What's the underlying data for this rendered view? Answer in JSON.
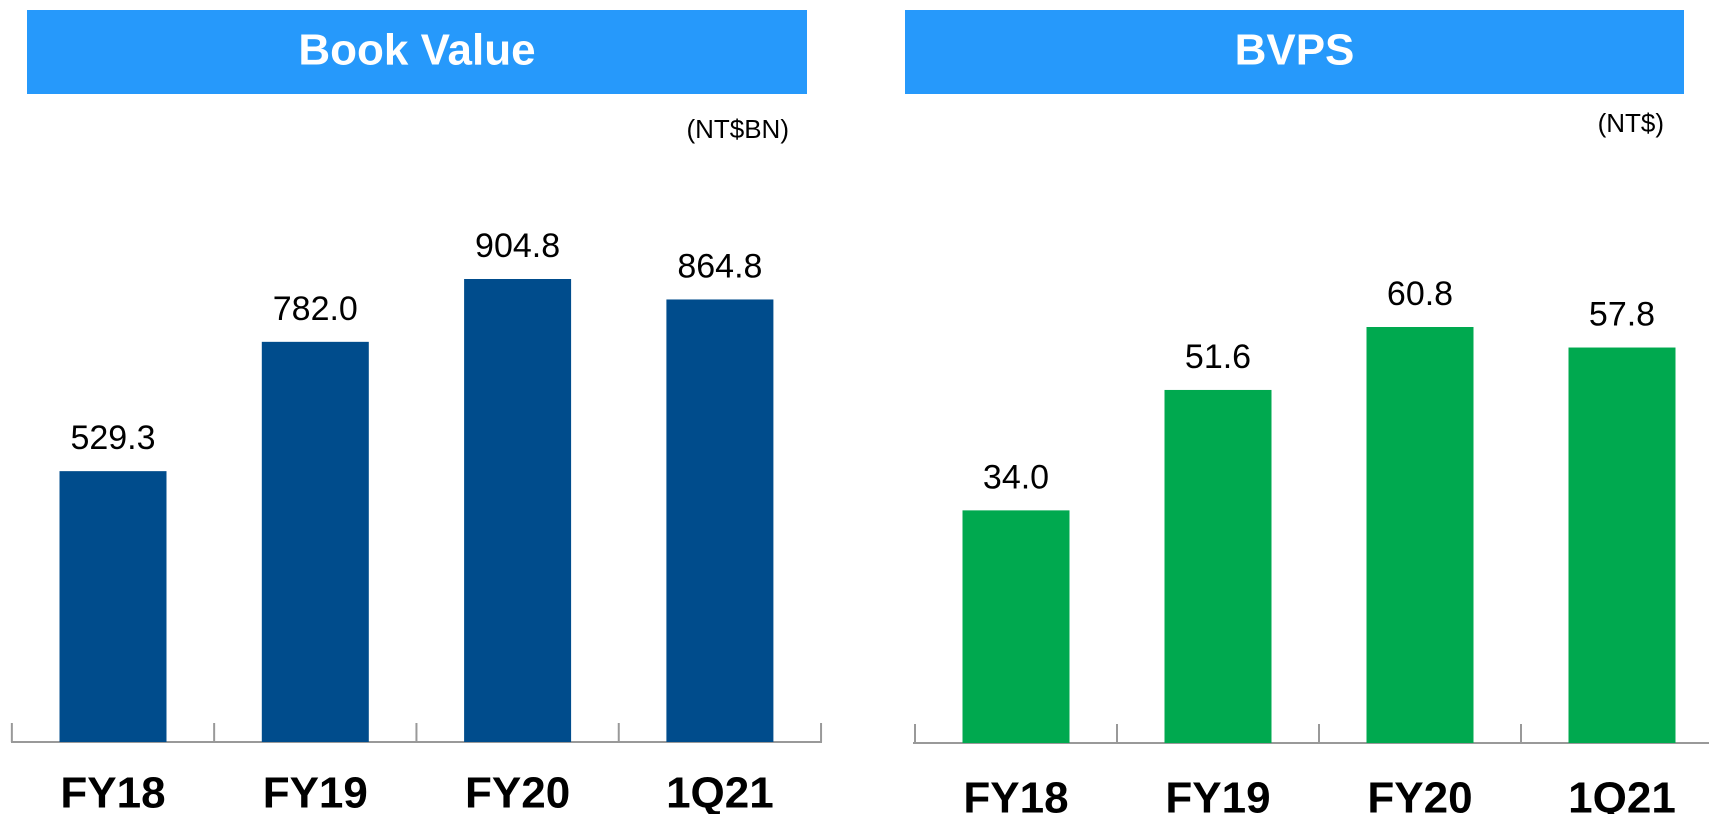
{
  "chart_data": [
    {
      "type": "bar",
      "title": "Book Value",
      "unit": "(NT$BN)",
      "categories": [
        "FY18",
        "FY19",
        "FY20",
        "1Q21"
      ],
      "values": [
        529.3,
        782.0,
        904.8,
        864.8
      ],
      "value_labels": [
        "529.3",
        "782.0",
        "904.8",
        "864.8"
      ],
      "color": "#004c8c"
    },
    {
      "type": "bar",
      "title": "BVPS",
      "unit": "(NT$)",
      "categories": [
        "FY18",
        "FY19",
        "FY20",
        "1Q21"
      ],
      "values": [
        34.0,
        51.6,
        60.8,
        57.8
      ],
      "value_labels": [
        "34.0",
        "51.6",
        "60.8",
        "57.8"
      ],
      "color": "#00a94f"
    }
  ]
}
